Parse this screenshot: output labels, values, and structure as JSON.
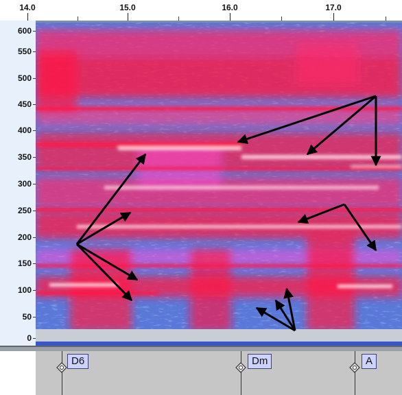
{
  "time_ruler": {
    "ticks": [
      "14.0",
      "15.0",
      "16.0",
      "17.0"
    ]
  },
  "freq_axis": {
    "ticks": [
      "600",
      "550",
      "500",
      "450",
      "400",
      "350",
      "300",
      "250",
      "200",
      "150",
      "100",
      "50",
      "0"
    ]
  },
  "chords": [
    "D6",
    "Dm",
    "A"
  ],
  "colors": {
    "spectrum_high": "#ff1744",
    "spectrum_mid": "#ff4fd8",
    "spectrum_low": "#5a78d8",
    "harmonic_peak": "#fff3f6",
    "annotation_arrow": "#000000",
    "chord_label_bg": "#cdd3ff"
  }
}
